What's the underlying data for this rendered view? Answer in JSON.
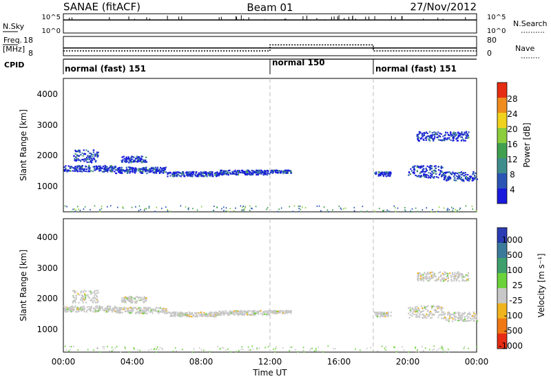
{
  "header": {
    "station": "SANAE (fitACF)",
    "beam": "Beam 01",
    "date": "27/Nov/2012"
  },
  "top_panels": {
    "nsky_label": "N.Sky",
    "nsky_ticks": [
      "10^5",
      "10^0"
    ],
    "nsearch_label": "N.Search",
    "nsearch_ticks": [
      "10^5",
      "10^0"
    ],
    "freq_label_line1": "Freq.",
    "freq_label_line2": "[MHz]",
    "freq_ticks": [
      "18",
      "8"
    ],
    "nave_label": "Nave",
    "nave_ticks": [
      "80",
      "0"
    ],
    "cpid_label": "CPID",
    "cpid_segments": [
      {
        "label": "normal (fast) 151",
        "start_hour": 0,
        "end_hour": 12
      },
      {
        "label": "normal 150",
        "start_hour": 12,
        "end_hour": 18
      },
      {
        "label": "normal (fast) 151",
        "start_hour": 18,
        "end_hour": 24
      }
    ]
  },
  "power_panel": {
    "ylabel": "Slant Range [km]",
    "yticks": [
      "1000",
      "2000",
      "3000",
      "4000"
    ],
    "colorbar_label": "Power [dB]",
    "colorbar_ticks": [
      "4",
      "8",
      "12",
      "16",
      "20",
      "24",
      "28"
    ],
    "colors": [
      "#1a1adc",
      "#2a55b5",
      "#3f8c8c",
      "#40a050",
      "#8ccd3c",
      "#f0d21e",
      "#f08c1e",
      "#e62d14"
    ]
  },
  "velocity_panel": {
    "ylabel": "Slant Range [km]",
    "yticks": [
      "1000",
      "2000",
      "3000",
      "4000"
    ],
    "colorbar_label": "Velocity [m s⁻¹]",
    "colorbar_ticks": [
      "1000",
      "500",
      "100",
      "25",
      "-25",
      "-100",
      "-500",
      "-1000"
    ],
    "colors": [
      "#2a3cb4",
      "#3c7a9c",
      "#3fa06e",
      "#6cd23c",
      "#c8c8c8",
      "#f0b41e",
      "#f07814",
      "#e62d14"
    ]
  },
  "xaxis": {
    "label": "Time UT",
    "ticks": [
      "00:00",
      "04:00",
      "08:00",
      "12:00",
      "16:00",
      "20:00",
      "00:00"
    ]
  },
  "chart_data": {
    "type": "heatmap",
    "xlabel": "Time UT",
    "ylabel": "Slant Range [km]",
    "xlim_hours": [
      0,
      24
    ],
    "ylim_km": [
      180,
      4500
    ],
    "freq_mhz": {
      "ylim": [
        8,
        18
      ],
      "segments": [
        {
          "start_hour": 0,
          "end_hour": 12,
          "value": 12
        },
        {
          "start_hour": 12,
          "end_hour": 18,
          "value": 12
        },
        {
          "start_hour": 18,
          "end_hour": 24,
          "value": 12
        }
      ]
    },
    "nave": {
      "ylim": [
        0,
        80
      ],
      "segments": [
        {
          "start_hour": 0,
          "end_hour": 12,
          "value": 20
        },
        {
          "start_hour": 12,
          "end_hour": 18,
          "value": 45
        },
        {
          "start_hour": 18,
          "end_hour": 24,
          "value": 20
        }
      ]
    },
    "echo_bands": [
      {
        "start_hour": 0.0,
        "end_hour": 3.0,
        "range_km": [
          1500,
          1700
        ]
      },
      {
        "start_hour": 3.0,
        "end_hour": 6.0,
        "range_km": [
          1450,
          1650
        ]
      },
      {
        "start_hour": 6.0,
        "end_hour": 9.0,
        "range_km": [
          1350,
          1500
        ]
      },
      {
        "start_hour": 9.0,
        "end_hour": 12.0,
        "range_km": [
          1400,
          1550
        ]
      },
      {
        "start_hour": 12.0,
        "end_hour": 13.2,
        "range_km": [
          1450,
          1550
        ]
      },
      {
        "start_hour": 18.0,
        "end_hour": 19.0,
        "range_km": [
          1350,
          1500
        ]
      },
      {
        "start_hour": 20.0,
        "end_hour": 22.0,
        "range_km": [
          1300,
          1700
        ]
      },
      {
        "start_hour": 22.0,
        "end_hour": 24.0,
        "range_km": [
          1200,
          1500
        ]
      },
      {
        "start_hour": 0.5,
        "end_hour": 2.0,
        "range_km": [
          1800,
          2200
        ]
      },
      {
        "start_hour": 3.3,
        "end_hour": 4.8,
        "range_km": [
          1800,
          2000
        ]
      },
      {
        "start_hour": 20.5,
        "end_hour": 23.5,
        "range_km": [
          2500,
          2800
        ]
      }
    ]
  }
}
